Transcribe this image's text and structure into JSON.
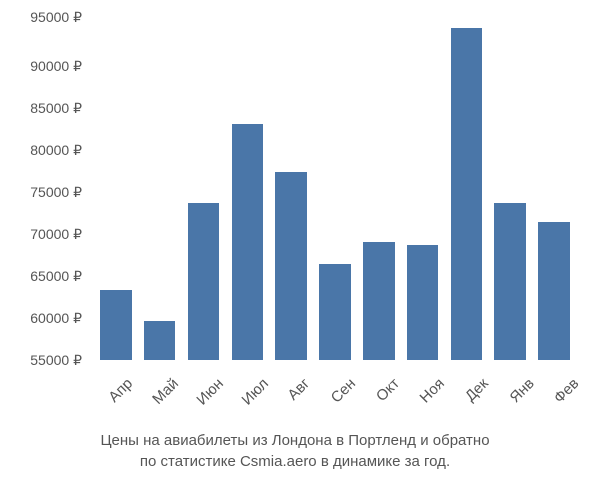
{
  "chart": {
    "type": "bar",
    "ylim": [
      55000,
      95000
    ],
    "ytick_step": 5000,
    "y_suffix": " ₽",
    "y_ticks": [
      95000,
      90000,
      85000,
      80000,
      75000,
      70000,
      65000,
      60000,
      55000
    ],
    "categories": [
      "Апр",
      "Май",
      "Июн",
      "Июл",
      "Авг",
      "Сен",
      "Окт",
      "Ноя",
      "Дек",
      "Янв",
      "Фев"
    ],
    "values": [
      63000,
      59500,
      73000,
      82000,
      76500,
      66000,
      68500,
      68200,
      93000,
      73000,
      70800
    ],
    "bar_color": "#4a76a8",
    "background_color": "#ffffff",
    "text_color": "#555555",
    "tick_fontsize": 14,
    "xtick_fontsize": 15,
    "caption_fontsize": 15,
    "bar_width_ratio": 0.72,
    "x_tick_rotation_deg": -45
  },
  "caption": {
    "line1": "Цены на авиабилеты из Лондона в Портленд и обратно",
    "line2": "по статистике Csmia.aero в динамике за год."
  }
}
